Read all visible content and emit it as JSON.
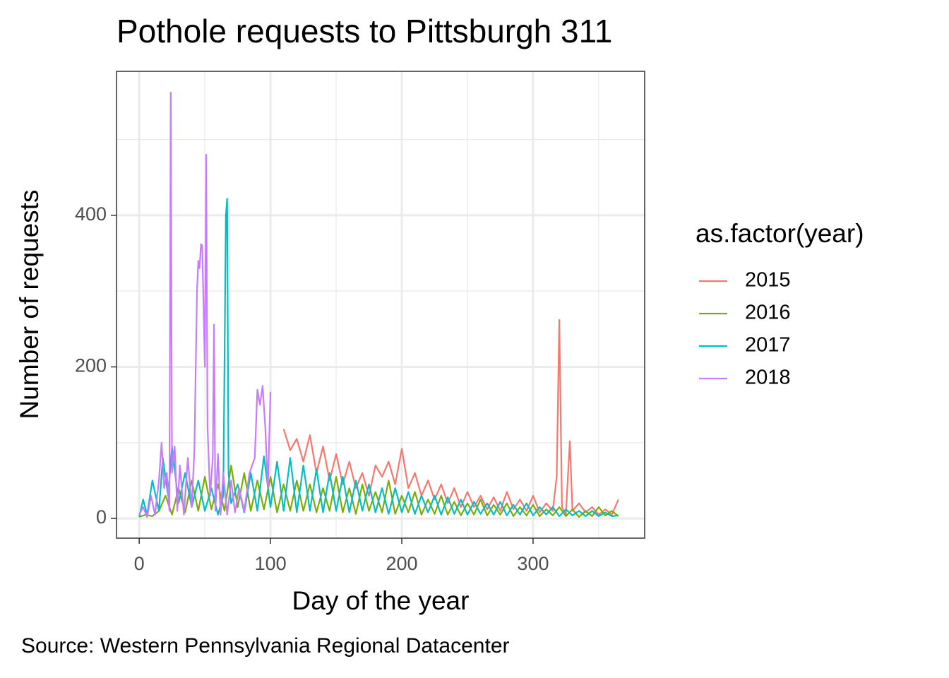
{
  "chart_data": {
    "type": "line",
    "title": "Pothole requests to Pittsburgh 311",
    "x_label": "Day of the year",
    "y_label": "Number of requests",
    "caption": "Source: Western Pennsylvania Regional Datacenter",
    "legend_title": "as.factor(year)",
    "legend_position": "right",
    "grid": true,
    "xlim": [
      -17.3,
      385
    ],
    "ylim": [
      -26,
      590
    ],
    "xticks": [
      0,
      100,
      200,
      300
    ],
    "yticks": [
      0,
      200,
      400
    ],
    "xminor": [
      50,
      150,
      250,
      350
    ],
    "yminor": [
      100,
      300,
      500
    ],
    "series": [
      {
        "name": "2015",
        "color": "#F8766D",
        "x": [
          110,
          115,
          120,
          125,
          130,
          135,
          140,
          145,
          150,
          155,
          160,
          165,
          170,
          175,
          180,
          185,
          190,
          195,
          200,
          205,
          210,
          215,
          220,
          225,
          230,
          235,
          240,
          245,
          250,
          255,
          260,
          265,
          270,
          275,
          280,
          285,
          290,
          295,
          300,
          305,
          310,
          315,
          318,
          320,
          322,
          325,
          328,
          330,
          335,
          340,
          345,
          350,
          355,
          360,
          365
        ],
        "values": [
          118,
          90,
          105,
          75,
          110,
          60,
          95,
          50,
          85,
          45,
          75,
          40,
          60,
          30,
          70,
          55,
          75,
          45,
          92,
          40,
          60,
          30,
          50,
          25,
          45,
          20,
          40,
          15,
          35,
          15,
          30,
          12,
          28,
          10,
          35,
          12,
          25,
          10,
          30,
          8,
          20,
          10,
          55,
          262,
          15,
          5,
          102,
          10,
          20,
          8,
          15,
          5,
          12,
          5,
          25
        ]
      },
      {
        "name": "2016",
        "color": "#7CAE00",
        "x": [
          0,
          5,
          10,
          15,
          20,
          25,
          30,
          35,
          40,
          45,
          50,
          55,
          60,
          65,
          70,
          75,
          80,
          85,
          90,
          95,
          100,
          105,
          110,
          115,
          120,
          125,
          130,
          135,
          140,
          145,
          150,
          155,
          160,
          165,
          170,
          175,
          180,
          185,
          190,
          195,
          200,
          205,
          210,
          215,
          220,
          225,
          230,
          235,
          240,
          245,
          250,
          255,
          260,
          265,
          270,
          275,
          280,
          285,
          290,
          295,
          300,
          305,
          310,
          315,
          320,
          325,
          330,
          335,
          340,
          345,
          350,
          355,
          360,
          365
        ],
        "values": [
          2,
          5,
          3,
          10,
          30,
          5,
          40,
          8,
          50,
          10,
          55,
          12,
          45,
          10,
          70,
          15,
          60,
          10,
          50,
          12,
          55,
          8,
          45,
          10,
          50,
          10,
          45,
          8,
          40,
          10,
          55,
          8,
          40,
          6,
          45,
          10,
          35,
          8,
          50,
          6,
          30,
          8,
          35,
          5,
          25,
          6,
          30,
          5,
          22,
          4,
          20,
          5,
          25,
          4,
          18,
          5,
          20,
          3,
          15,
          4,
          18,
          3,
          12,
          4,
          15,
          3,
          12,
          2,
          10,
          3,
          15,
          4,
          10,
          3
        ]
      },
      {
        "name": "2017",
        "color": "#00BFC4",
        "x": [
          0,
          3,
          6,
          10,
          15,
          18,
          22,
          25,
          30,
          35,
          40,
          45,
          50,
          55,
          60,
          64,
          66,
          67,
          68,
          70,
          75,
          80,
          85,
          90,
          95,
          100,
          105,
          110,
          115,
          120,
          125,
          130,
          135,
          140,
          145,
          150,
          155,
          160,
          165,
          170,
          175,
          180,
          185,
          190,
          195,
          200,
          205,
          210,
          215,
          220,
          225,
          230,
          235,
          240,
          245,
          250,
          255,
          260,
          265,
          270,
          275,
          280,
          285,
          290,
          295,
          300,
          305,
          310,
          315,
          320,
          325,
          330,
          335,
          340,
          345,
          350,
          355,
          360,
          365
        ],
        "values": [
          2,
          25,
          5,
          50,
          10,
          80,
          30,
          95,
          20,
          60,
          15,
          50,
          10,
          40,
          5,
          30,
          400,
          422,
          60,
          20,
          45,
          8,
          60,
          10,
          82,
          15,
          75,
          10,
          80,
          8,
          70,
          10,
          65,
          8,
          60,
          10,
          55,
          8,
          50,
          10,
          45,
          8,
          40,
          6,
          40,
          8,
          35,
          6,
          30,
          8,
          30,
          5,
          28,
          6,
          25,
          5,
          22,
          6,
          20,
          5,
          22,
          4,
          18,
          5,
          20,
          4,
          15,
          5,
          15,
          3,
          12,
          4,
          10,
          3,
          10,
          3,
          8,
          3,
          4
        ]
      },
      {
        "name": "2018",
        "color": "#C77CFF",
        "x": [
          0,
          3,
          6,
          9,
          12,
          15,
          17,
          19,
          21,
          23,
          24,
          25,
          27,
          29,
          31,
          34,
          37,
          40,
          42,
          44,
          45,
          46,
          47,
          48,
          50,
          51,
          52,
          54,
          56,
          57,
          58,
          60,
          62,
          64,
          67,
          70,
          73,
          76,
          80,
          84,
          88,
          90,
          92,
          94,
          96,
          98,
          100
        ],
        "values": [
          5,
          15,
          2,
          30,
          5,
          50,
          100,
          40,
          60,
          10,
          562,
          60,
          95,
          10,
          70,
          5,
          80,
          15,
          90,
          300,
          340,
          330,
          362,
          360,
          200,
          480,
          120,
          30,
          80,
          256,
          10,
          85,
          5,
          60,
          5,
          50,
          8,
          40,
          10,
          60,
          80,
          170,
          150,
          175,
          120,
          40,
          167
        ]
      }
    ]
  }
}
